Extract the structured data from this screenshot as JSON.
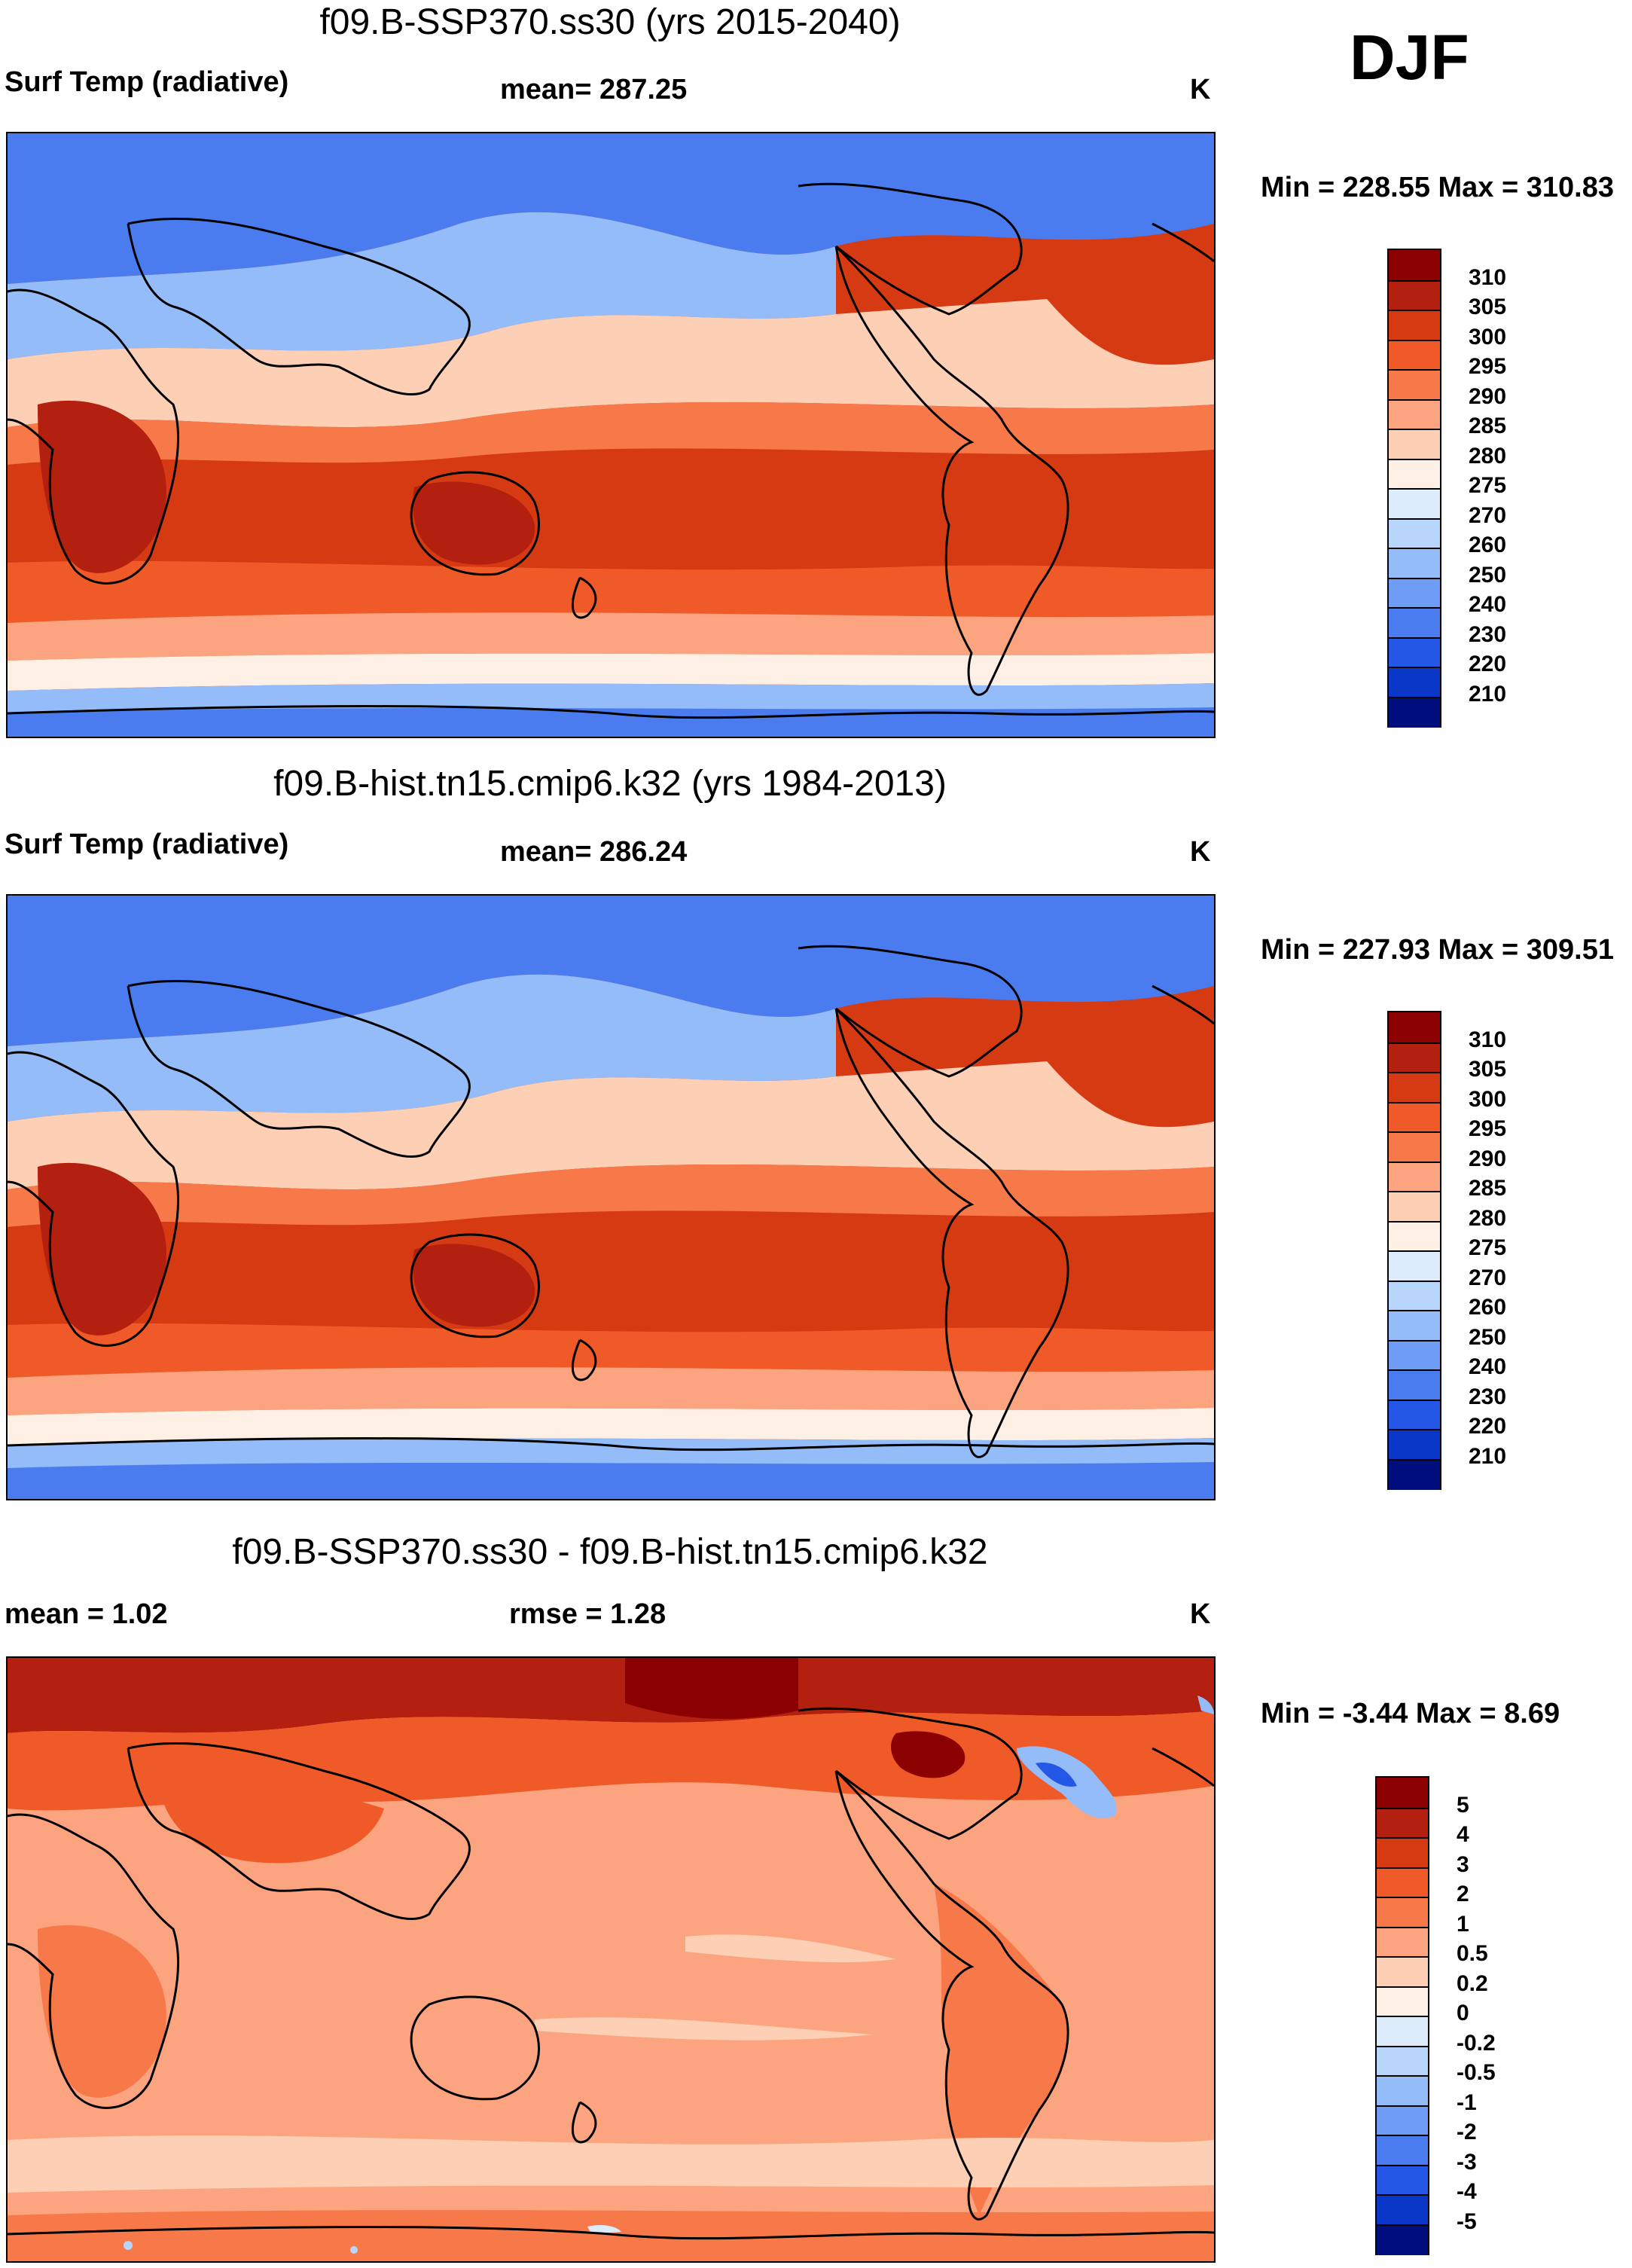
{
  "season": "DJF",
  "panels": [
    {
      "title": "f09.B-SSP370.ss30 (yrs 2015-2040)",
      "left_label": "Surf Temp (radiative)",
      "center_label": "mean= 287.25",
      "units": "K",
      "minmax": "Min = 228.55 Max = 310.83",
      "colorbar": {
        "labels": [
          "310",
          "305",
          "300",
          "295",
          "290",
          "285",
          "280",
          "275",
          "270",
          "260",
          "250",
          "240",
          "230",
          "220",
          "210"
        ],
        "colors": [
          "#8b0000",
          "#b3200f",
          "#d63a12",
          "#f05a28",
          "#f7794a",
          "#fca47f",
          "#fdd0b6",
          "#fff0e6",
          "#dcecfb",
          "#b8d6fb",
          "#93bcf9",
          "#6f9df5",
          "#4a7cef",
          "#2457e6",
          "#0b37c9",
          "#000d7c"
        ]
      },
      "map_style": "absolute"
    },
    {
      "title": "f09.B-hist.tn15.cmip6.k32 (yrs 1984-2013)",
      "left_label": "Surf Temp (radiative)",
      "center_label": "mean= 286.24",
      "units": "K",
      "minmax": "Min = 227.93 Max = 309.51",
      "colorbar": {
        "labels": [
          "310",
          "305",
          "300",
          "295",
          "290",
          "285",
          "280",
          "275",
          "270",
          "260",
          "250",
          "240",
          "230",
          "220",
          "210"
        ],
        "colors": [
          "#8b0000",
          "#b3200f",
          "#d63a12",
          "#f05a28",
          "#f7794a",
          "#fca47f",
          "#fdd0b6",
          "#fff0e6",
          "#dcecfb",
          "#b8d6fb",
          "#93bcf9",
          "#6f9df5",
          "#4a7cef",
          "#2457e6",
          "#0b37c9",
          "#000d7c"
        ]
      },
      "map_style": "absolute"
    },
    {
      "title": "f09.B-SSP370.ss30 - f09.B-hist.tn15.cmip6.k32",
      "left_label": "mean =   1.02",
      "center_label": "rmse =   1.28",
      "units": "K",
      "minmax": "Min =  -3.44 Max =   8.69",
      "colorbar": {
        "labels": [
          "5",
          "4",
          "3",
          "2",
          "1",
          "0.5",
          "0.2",
          "0",
          "-0.2",
          "-0.5",
          "-1",
          "-2",
          "-3",
          "-4",
          "-5"
        ],
        "colors": [
          "#8b0000",
          "#b3200f",
          "#d63a12",
          "#f05a28",
          "#f7794a",
          "#fca47f",
          "#fdd0b6",
          "#fff0e6",
          "#dcecfb",
          "#b8d6fb",
          "#93bcf9",
          "#6f9df5",
          "#4a7cef",
          "#2457e6",
          "#0b37c9",
          "#000d7c"
        ]
      },
      "map_style": "difference"
    }
  ]
}
